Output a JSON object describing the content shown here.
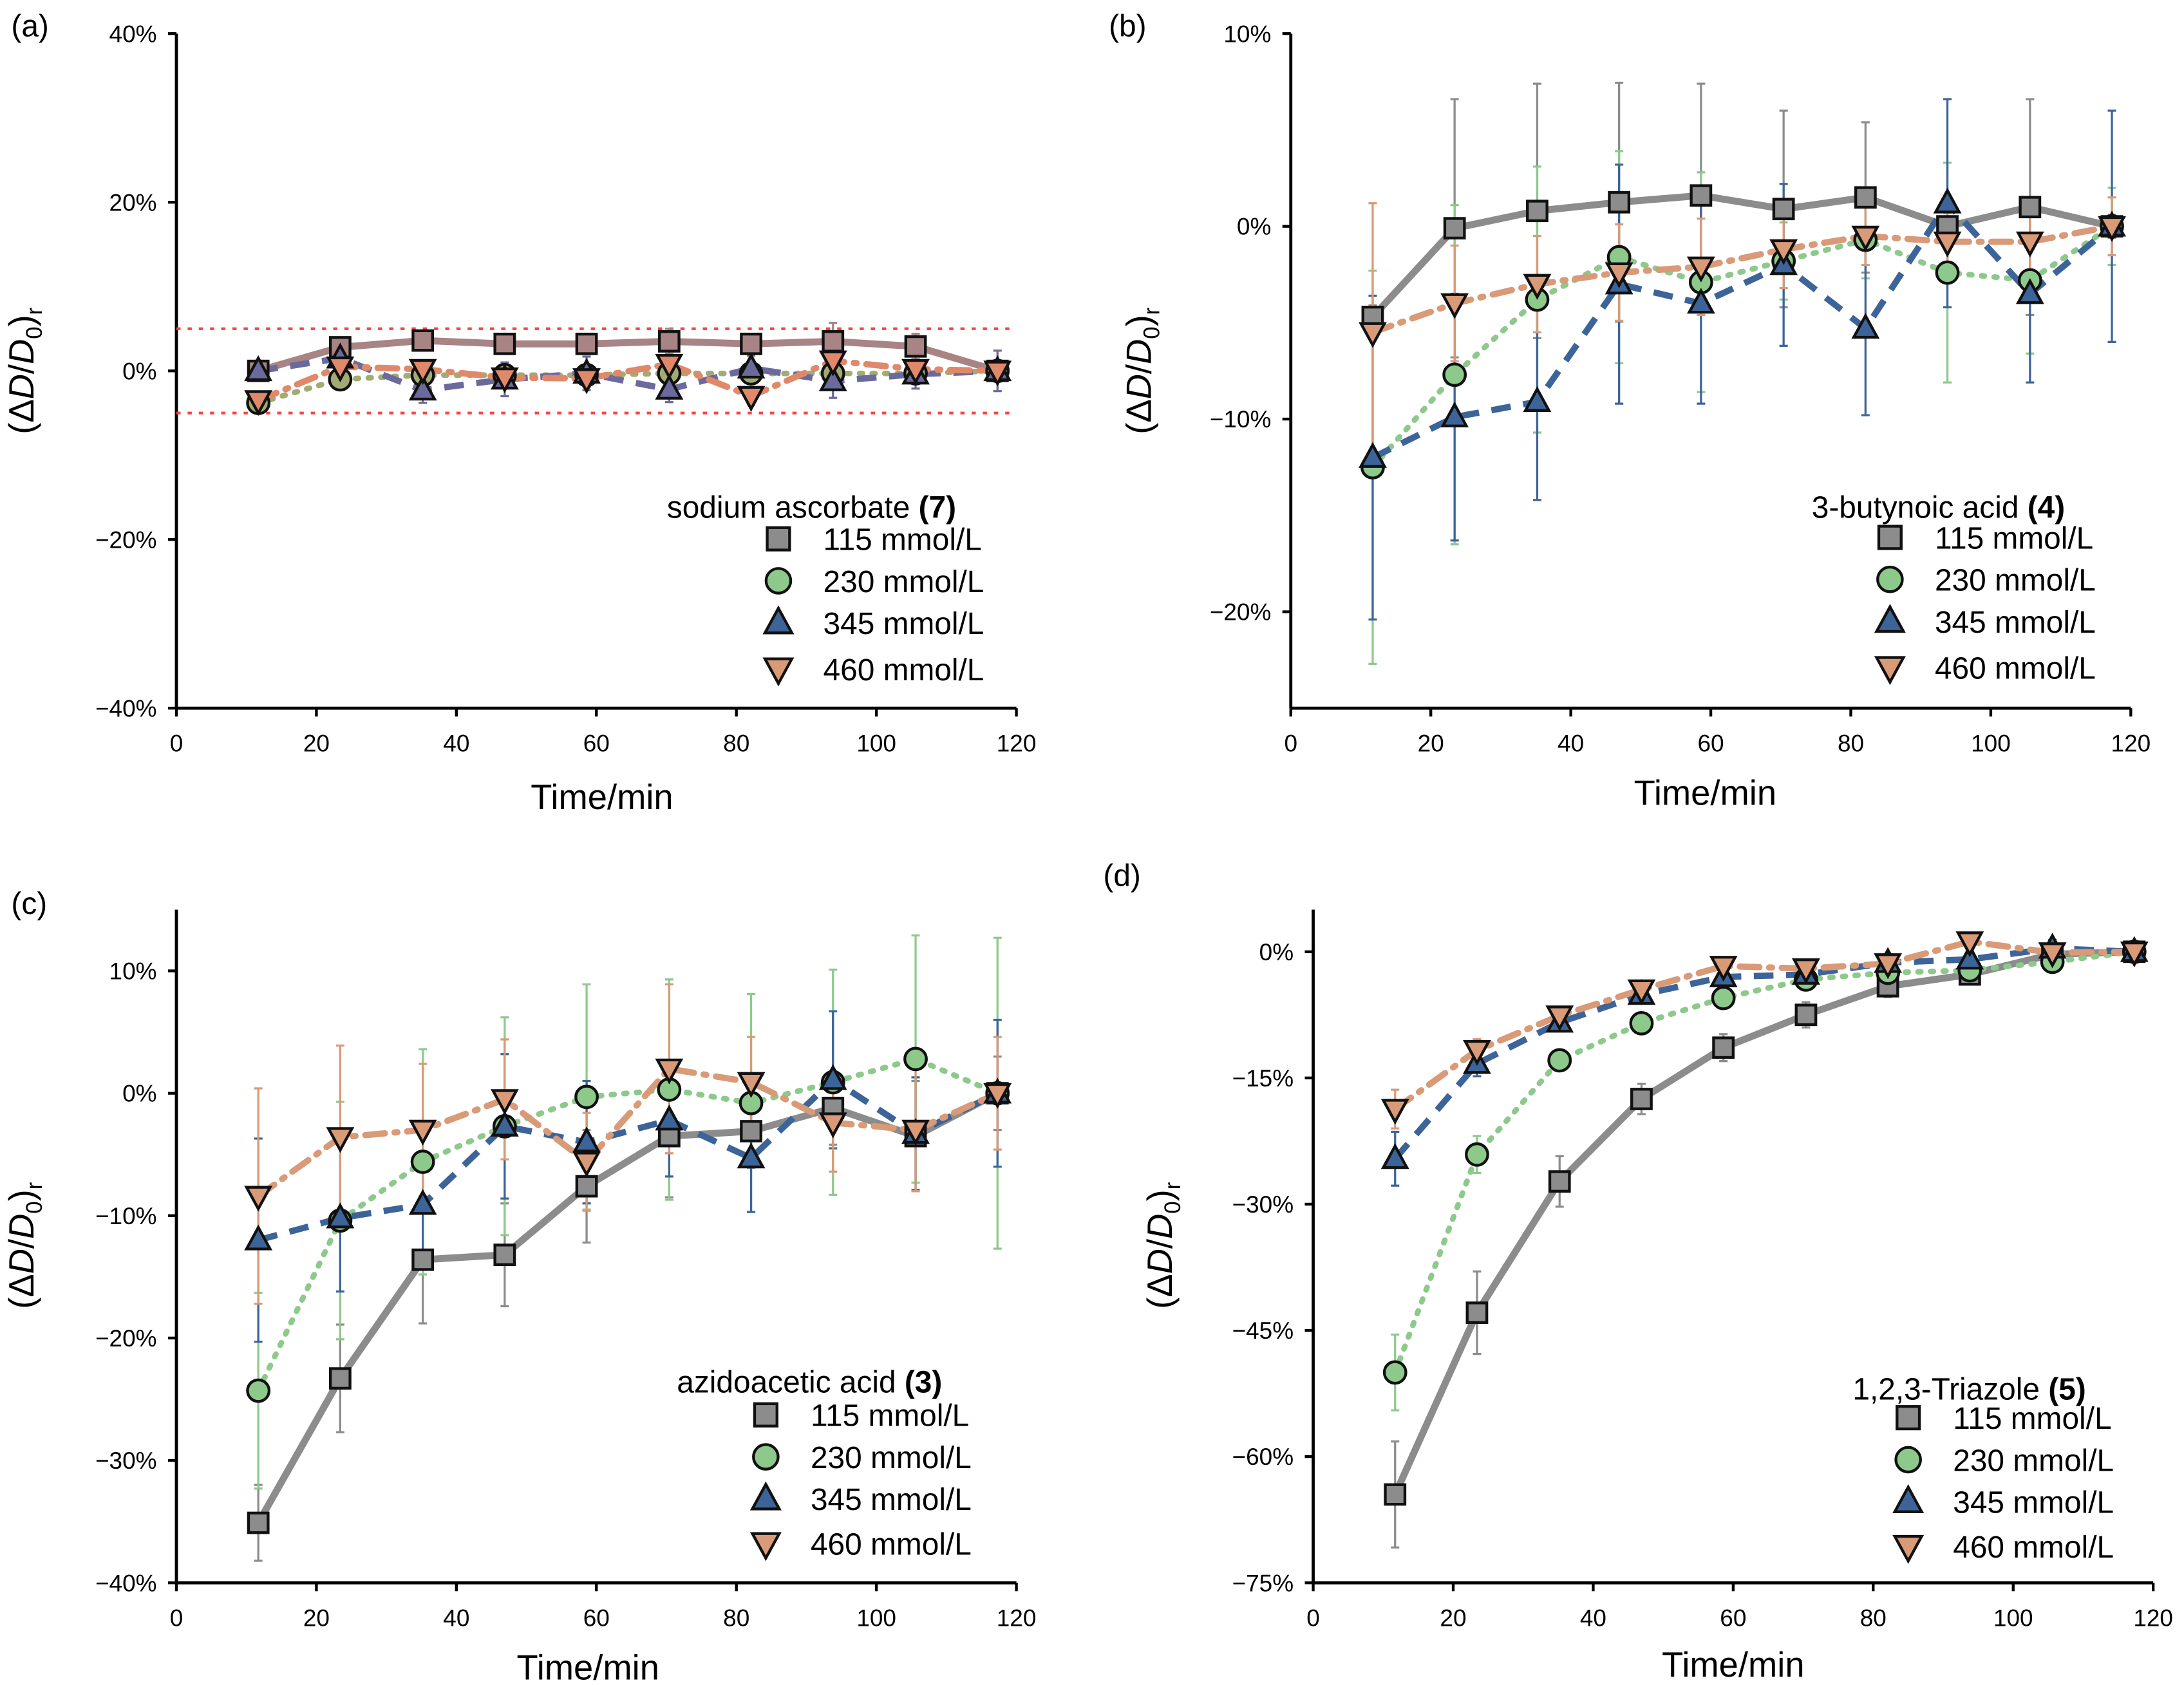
{
  "chart_data": [
    {
      "panel_label": "(a)",
      "type": "line",
      "title": "sodium ascorbate",
      "title_num": "(7)",
      "xlabel": "Time/min",
      "xlim": [
        0,
        120
      ],
      "ylim": [
        -40,
        40
      ],
      "xticks": [
        0,
        20,
        40,
        60,
        80,
        100,
        120
      ],
      "yticks": [
        -40,
        -20,
        0,
        20,
        40
      ],
      "ytick_labels": [
        "−40%",
        "−20%",
        "0%",
        "20%",
        "40%"
      ],
      "reference_lines": [
        5,
        -5
      ],
      "reference_color": "#ff4040",
      "x": [
        11.7,
        23.4,
        35.2,
        46.9,
        58.6,
        70.4,
        82.1,
        93.8,
        105.6,
        117.3
      ],
      "series_colors": [
        "#a88484",
        "#a3ab74",
        "#6b6a9c",
        "#e0896a"
      ],
      "series": [
        {
          "name": "115 mmol/L",
          "values": [
            0,
            2.8,
            3.6,
            3.2,
            3.2,
            3.5,
            3.2,
            3.5,
            2.9,
            0
          ],
          "err": [
            1.2,
            0.8,
            1,
            0.8,
            0.8,
            1.5,
            0.8,
            2.2,
            1.5,
            0.6
          ]
        },
        {
          "name": "230 mmol/L",
          "values": [
            -3.8,
            -1,
            -0.5,
            -0.5,
            -0.5,
            -0.3,
            -0.3,
            -0.3,
            -0.3,
            0
          ],
          "err": [
            0.8,
            1,
            1,
            1,
            1,
            1,
            1,
            1,
            1,
            0.8
          ]
        },
        {
          "name": "345 mmol/L",
          "values": [
            0,
            1.5,
            -2.3,
            -1,
            -0.3,
            -2.2,
            0.3,
            -1.2,
            -0.4,
            0
          ],
          "err": [
            1,
            1.5,
            1.5,
            2,
            2,
            1.5,
            1.5,
            2,
            1.7,
            2.4
          ]
        },
        {
          "name": "460 mmol/L",
          "values": [
            -3.5,
            0.5,
            0.2,
            -0.8,
            -0.9,
            0.8,
            -3,
            1.2,
            0.2,
            0
          ],
          "err": [
            1,
            1,
            1,
            1,
            1,
            1,
            1,
            1,
            1,
            1
          ]
        }
      ]
    },
    {
      "panel_label": "(b)",
      "type": "line",
      "title": "3-butynoic acid",
      "title_num": "(4)",
      "xlabel": "Time/min",
      "xlim": [
        0,
        120
      ],
      "ylim": [
        -25,
        10
      ],
      "xticks": [
        0,
        20,
        40,
        60,
        80,
        100,
        120
      ],
      "yticks": [
        -20,
        -10,
        0,
        10
      ],
      "ytick_labels": [
        "−20%",
        "−10%",
        "0%",
        "10%"
      ],
      "x": [
        11.7,
        23.4,
        35.2,
        46.9,
        58.6,
        70.4,
        82.1,
        93.8,
        105.6,
        117.3
      ],
      "series": [
        {
          "name": "115 mmol/L",
          "values": [
            -4.7,
            -0.1,
            0.8,
            1.25,
            1.6,
            0.9,
            1.5,
            0,
            1,
            0
          ],
          "err": [
            0.6,
            6.7,
            6.6,
            6.2,
            5.8,
            5.1,
            3.9,
            1,
            5.6,
            0.6
          ]
        },
        {
          "name": "230 mmol/L",
          "values": [
            -12.5,
            -7.7,
            -3.8,
            -1.6,
            -2.9,
            -1.8,
            -0.7,
            -2.4,
            -2.8,
            0
          ],
          "err": [
            10.2,
            8.8,
            6.9,
            5.5,
            5.7,
            2,
            2,
            5.7,
            3.8,
            2
          ]
        },
        {
          "name": "345 mmol/L",
          "values": [
            -12,
            -9.9,
            -9.1,
            -3,
            -4,
            -2,
            -5.3,
            1.2,
            -3.5,
            0
          ],
          "err": [
            8.4,
            6.4,
            5.1,
            6.2,
            5.2,
            4.2,
            4.5,
            5.4,
            4.6,
            6
          ]
        },
        {
          "name": "460 mmol/L",
          "values": [
            -5.5,
            -4,
            -3,
            -2.4,
            -2.1,
            -1.2,
            -0.5,
            -0.8,
            -0.8,
            0
          ],
          "err": [
            6.7,
            3,
            2.5,
            2.5,
            2.5,
            2,
            1.5,
            1.5,
            2,
            1.5
          ]
        }
      ]
    },
    {
      "panel_label": "(c)",
      "type": "line",
      "title": "azidoacetic acid",
      "title_num": "(3)",
      "xlabel": "Time/min",
      "xlim": [
        0,
        120
      ],
      "ylim": [
        -40,
        15
      ],
      "xticks": [
        0,
        20,
        40,
        60,
        80,
        100,
        120
      ],
      "yticks": [
        -40,
        -30,
        -20,
        -10,
        0,
        10
      ],
      "ytick_labels": [
        "−40%",
        "−30%",
        "−20%",
        "−10%",
        "0%",
        "10%"
      ],
      "x": [
        11.7,
        23.4,
        35.2,
        46.9,
        58.6,
        70.4,
        82.1,
        93.8,
        105.6,
        117.3
      ],
      "series": [
        {
          "name": "115 mmol/L",
          "values": [
            -35.1,
            -23.3,
            -13.6,
            -13.2,
            -7.6,
            -3.5,
            -3.1,
            -1.2,
            -3.5,
            0
          ],
          "err": [
            3.1,
            4.4,
            5.2,
            4.2,
            4.6,
            5,
            3,
            3,
            4.5,
            3
          ]
        },
        {
          "name": "230 mmol/L",
          "values": [
            -24.3,
            -10.4,
            -5.6,
            -2.7,
            -0.3,
            0.3,
            -0.8,
            0.9,
            2.8,
            0
          ],
          "err": [
            8,
            9.7,
            9.2,
            8.9,
            9.2,
            9,
            8.9,
            9.2,
            10.1,
            12.7
          ]
        },
        {
          "name": "345 mmol/L",
          "values": [
            -12,
            -10.2,
            -9.1,
            -2.7,
            -4,
            -2.2,
            -5.3,
            1.1,
            -3.3,
            0
          ],
          "err": [
            8.3,
            6,
            4,
            5.9,
            5,
            4.6,
            4.4,
            5.6,
            4.6,
            6
          ]
        },
        {
          "name": "460 mmol/L",
          "values": [
            -8.4,
            -3.6,
            -3,
            -0.5,
            -5.6,
            2,
            0.9,
            -2.4,
            -3,
            0
          ],
          "err": [
            8.8,
            7.5,
            5.4,
            4.9,
            4,
            6.9,
            3.7,
            4,
            5,
            4.6
          ]
        }
      ]
    },
    {
      "panel_label": "(d)",
      "type": "line",
      "title": "1,2,3-Triazole",
      "title_num": "(5)",
      "xlabel": "Time/min",
      "xlim": [
        0,
        120
      ],
      "ylim": [
        -75,
        5
      ],
      "xticks": [
        0,
        20,
        40,
        60,
        80,
        100,
        120
      ],
      "yticks": [
        -75,
        -60,
        -45,
        -30,
        -15,
        0
      ],
      "ytick_labels": [
        "−75%",
        "−60%",
        "−45%",
        "−30%",
        "−15%",
        "0%"
      ],
      "x": [
        11.7,
        23.4,
        35.2,
        46.9,
        58.6,
        70.4,
        82.1,
        93.8,
        105.6,
        117.3
      ],
      "series": [
        {
          "name": "115 mmol/L",
          "values": [
            -64.5,
            -42.9,
            -27.3,
            -17.5,
            -11.4,
            -7.5,
            -4.1,
            -2.7,
            -0.3,
            0
          ],
          "err": [
            6.3,
            4.9,
            3,
            1.8,
            1.6,
            1.5,
            1.3,
            1.2,
            1,
            1
          ]
        },
        {
          "name": "230 mmol/L",
          "values": [
            -50,
            -24.1,
            -12.9,
            -8.5,
            -5.5,
            -3.3,
            -2.5,
            -2.2,
            -1.2,
            0
          ],
          "err": [
            4.5,
            2.2,
            1,
            1,
            1,
            1,
            1,
            1,
            1,
            1
          ]
        },
        {
          "name": "345 mmol/L",
          "values": [
            -24.6,
            -13.3,
            -8.4,
            -5.1,
            -3,
            -2.7,
            -1.3,
            -0.9,
            0.4,
            0
          ],
          "err": [
            3.2,
            1.5,
            1,
            1,
            1,
            1,
            1,
            1,
            1,
            1
          ]
        },
        {
          "name": "460 mmol/L",
          "values": [
            -18.7,
            -11.7,
            -7.6,
            -4.5,
            -1.7,
            -2,
            -1.4,
            1.2,
            -0.1,
            0
          ],
          "err": [
            2.3,
            1.3,
            1,
            1,
            1,
            1,
            1,
            1,
            1,
            1
          ]
        }
      ]
    }
  ],
  "ylabel": {
    "open": "(Δ",
    "d1": "D",
    "slash": "/",
    "d2": "D",
    "sub0": "0",
    "close": ")",
    "subr": "r"
  },
  "colors": {
    "115": "#8c8c8c",
    "230": "#8ec98c",
    "345": "#3d6499",
    "460": "#d99a78"
  },
  "markers": [
    "square",
    "circle",
    "triangle-up",
    "triangle-down"
  ],
  "line_styles": [
    "solid",
    "dotted",
    "dashed",
    "dash-dot"
  ]
}
